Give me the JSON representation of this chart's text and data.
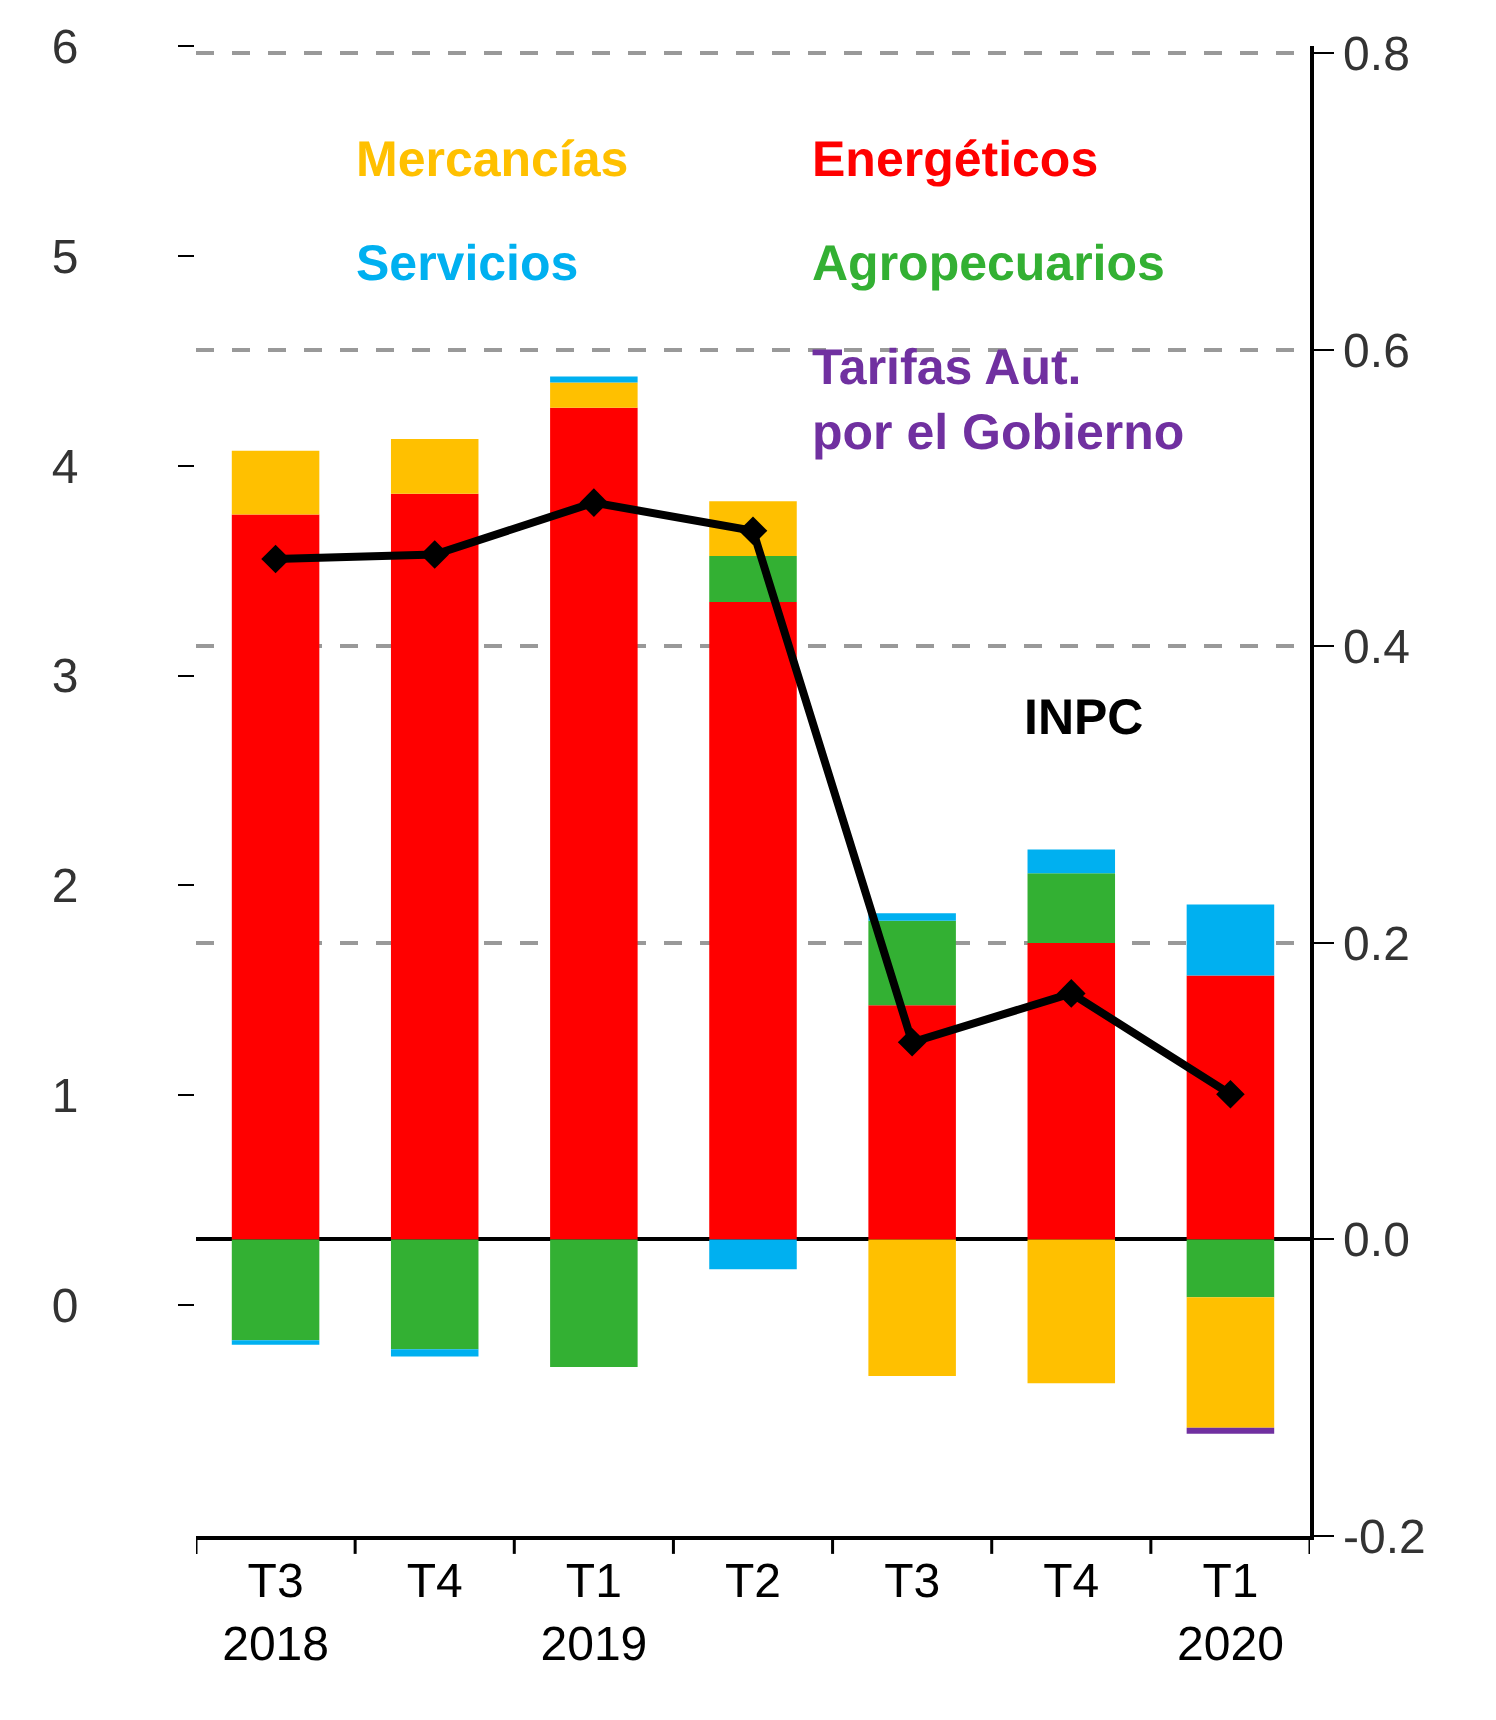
{
  "chart_data": {
    "type": "bar",
    "stacked": true,
    "categories": [
      "T3\n2018",
      "T4",
      "T1\n2019",
      "T2",
      "T3",
      "T4",
      "T1\n2020"
    ],
    "series": [
      {
        "name": "Energéticos",
        "color": "#ff0000",
        "axis": "y2",
        "values": [
          0.489,
          0.503,
          0.561,
          0.43,
          0.158,
          0.2,
          0.178
        ]
      },
      {
        "name": "Agropecuarios",
        "color": "#33b033",
        "axis": "y2",
        "values": [
          -0.068,
          -0.074,
          -0.086,
          0.031,
          0.057,
          0.047,
          -0.039
        ]
      },
      {
        "name": "Mercancías",
        "color": "#ffc000",
        "axis": "y2",
        "values": [
          0.043,
          0.037,
          0.017,
          0.037,
          -0.092,
          -0.097,
          -0.088
        ]
      },
      {
        "name": "Servicios",
        "color": "#00b0f0",
        "axis": "y2",
        "values": [
          -0.003,
          -0.005,
          0.004,
          -0.02,
          0.005,
          0.016,
          0.048
        ]
      },
      {
        "name": "Tarifas Aut.\npor el Gobierno",
        "color": "#7030a0",
        "axis": "y2",
        "values": [
          null,
          null,
          null,
          null,
          null,
          null,
          -0.004
        ]
      },
      {
        "name": "INPC",
        "type": "line",
        "color": "#000000",
        "axis": "y2",
        "marker": "diamond",
        "values": [
          0.459,
          0.462,
          0.497,
          0.478,
          0.133,
          0.166,
          0.098
        ]
      }
    ],
    "ylim": [
      -1.1,
      6.0
    ],
    "yticks": [
      0,
      1,
      2,
      3,
      4,
      5,
      6
    ],
    "y2lim": [
      -0.2,
      0.805
    ],
    "y2ticks": [
      -0.2,
      {
        "value": 0,
        "label": "0.0"
      },
      0.2,
      0.4,
      0.6,
      0.8
    ],
    "grid": true,
    "legend": false
  }
}
